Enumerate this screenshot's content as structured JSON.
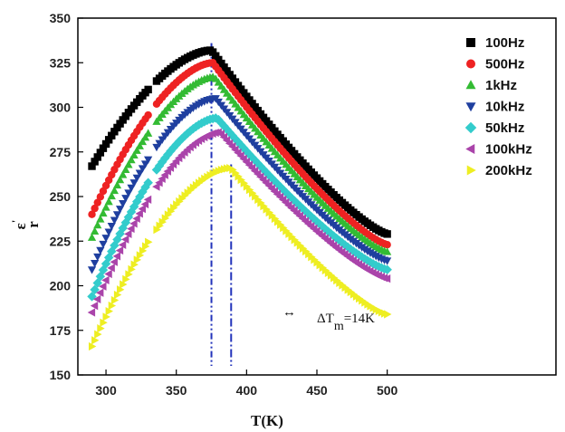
{
  "chart_data": {
    "type": "scatter",
    "xlabel": "T(K)",
    "ylabel": "ε'r",
    "ylabel_main": "ε",
    "ylabel_prime": "'",
    "ylabel_sub": "r",
    "xlim": [
      280,
      620
    ],
    "ylim": [
      150,
      350
    ],
    "xticks": [
      "300",
      "350",
      "400",
      "450",
      "500"
    ],
    "xtick_values": [
      300,
      350,
      400,
      450,
      500
    ],
    "yticks": [
      "150",
      "175",
      "200",
      "225",
      "250",
      "275",
      "300",
      "325",
      "350"
    ],
    "ytick_values": [
      150,
      175,
      200,
      225,
      250,
      275,
      300,
      325,
      350
    ],
    "legend_position": "top-right",
    "series": [
      {
        "name": "100Hz",
        "marker": "square",
        "color": "#000000",
        "x_start": 290,
        "x_end": 500,
        "peak_T": 375,
        "peak_value": 332,
        "start_value": 267,
        "end_value": 229
      },
      {
        "name": "500Hz",
        "marker": "circle",
        "color": "#ee2222",
        "x_start": 290,
        "x_end": 500,
        "peak_T": 376,
        "peak_value": 325,
        "start_value": 240,
        "end_value": 223
      },
      {
        "name": "1kHz",
        "marker": "triangle-up",
        "color": "#33bb33",
        "x_start": 290,
        "x_end": 500,
        "peak_T": 377,
        "peak_value": 317,
        "start_value": 227,
        "end_value": 219
      },
      {
        "name": "10kHz",
        "marker": "triangle-down",
        "color": "#1f3f9f",
        "x_start": 290,
        "x_end": 500,
        "peak_T": 378,
        "peak_value": 305,
        "start_value": 209,
        "end_value": 214
      },
      {
        "name": "50kHz",
        "marker": "diamond",
        "color": "#33cccc",
        "x_start": 290,
        "x_end": 500,
        "peak_T": 379,
        "peak_value": 294,
        "start_value": 194,
        "end_value": 209
      },
      {
        "name": "100kHz",
        "marker": "triangle-left",
        "color": "#aa44aa",
        "x_start": 290,
        "x_end": 500,
        "peak_T": 381,
        "peak_value": 286,
        "start_value": 185,
        "end_value": 204
      },
      {
        "name": "200kHz",
        "marker": "triangle-right",
        "color": "#eeee22",
        "x_start": 290,
        "x_end": 500,
        "peak_T": 389,
        "peak_value": 266,
        "start_value": 166,
        "end_value": 184
      }
    ],
    "annotations": {
      "dash_lines_T": [
        375,
        389
      ],
      "dash_color": "#2233bb",
      "delta_label_main": "ΔT",
      "delta_label_sub": "m",
      "delta_label_rest": "=14K",
      "arrow_glyph": "↔"
    }
  }
}
